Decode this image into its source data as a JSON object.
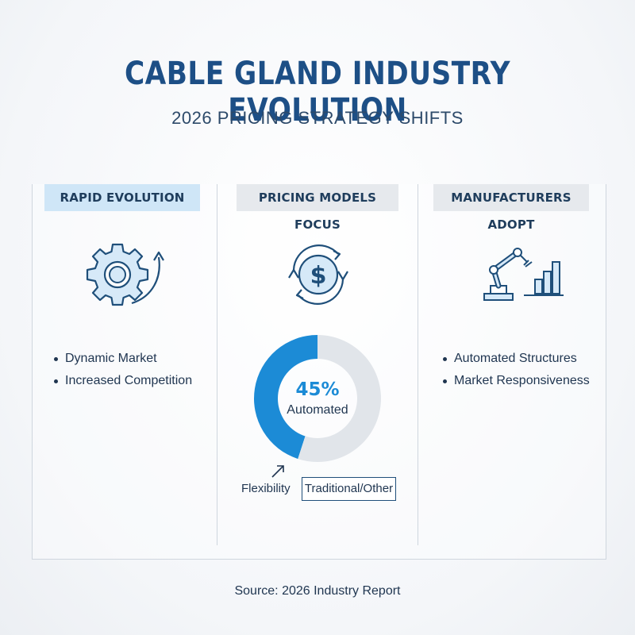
{
  "header": {
    "title": "CABLE GLAND INDUSTRY EVOLUTION",
    "subtitle": "2026 PRICING STRATEGY SHIFTS"
  },
  "columns": [
    {
      "heading": "RAPID EVOLUTION",
      "icon": "gear-with-arrow-icon",
      "bullets": [
        "Dynamic Market",
        "Increased Competition"
      ]
    },
    {
      "heading": "PRICING MODELS FOCUS",
      "icon": "dollar-cycle-icon"
    },
    {
      "heading": "MANUFACTURERS ADOPT",
      "icon": "robot-arm-bar-chart-icon",
      "bullets": [
        "Automated Structures",
        "Market Responsiveness"
      ]
    }
  ],
  "chart_data": {
    "type": "pie",
    "variant": "donut",
    "center_value": "45%",
    "center_label": "Automated",
    "slices": [
      {
        "label": "Automated",
        "value": 45,
        "color": "#1c8bd6"
      },
      {
        "label": "Traditional/Other",
        "value": 55,
        "color": "#e1e5ea"
      }
    ],
    "annotations": [
      "Flexibility",
      "Traditional/Other"
    ]
  },
  "footer": {
    "source": "Source: 2026 Industry Report"
  },
  "colors": {
    "title": "#1d4f86",
    "accent": "#1c8bd6",
    "heading_highlight": "#cfe6f7",
    "heading_neutral": "#e6e9ed"
  }
}
